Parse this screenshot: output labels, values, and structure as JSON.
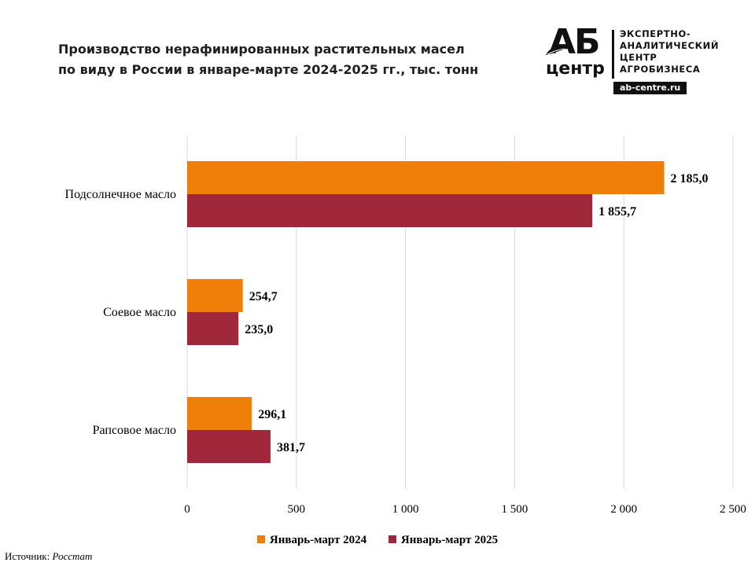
{
  "title_lines": [
    "Производство нерафинированных растительных масел",
    "по виду в России в январе-марте 2024-2025 гг., тыс. тонн"
  ],
  "logo": {
    "letters_top": "АБ",
    "letters_bottom": "центр",
    "text_lines": [
      "ЭКСПЕРТНО-",
      "АНАЛИТИЧЕСКИЙ",
      "ЦЕНТР",
      "АГРОБИЗНЕСА"
    ],
    "url": "ab-centre.ru"
  },
  "chart_data": {
    "type": "bar",
    "orientation": "horizontal",
    "categories": [
      "Подсолнечное масло",
      "Соевое масло",
      "Рапсовое масло"
    ],
    "series": [
      {
        "name": "Январь-март 2024",
        "color": "#F07F09",
        "values": [
          2185.0,
          254.7,
          296.1
        ],
        "labels": [
          "2 185,0",
          "254,7",
          "296,1"
        ]
      },
      {
        "name": "Январь-март 2025",
        "color": "#A0283A",
        "values": [
          1855.7,
          235.0,
          381.7
        ],
        "labels": [
          "1 855,7",
          "235,0",
          "381,7"
        ]
      }
    ],
    "xlim": [
      0,
      2500
    ],
    "xticks": [
      0,
      500,
      1000,
      1500,
      2000,
      2500
    ],
    "xtick_labels": [
      "0",
      "500",
      "1 000",
      "1 500",
      "2 000",
      "2 500"
    ],
    "grid": true,
    "legend_position": "bottom"
  },
  "source": {
    "label": "Источник:",
    "value": "Росстат"
  }
}
